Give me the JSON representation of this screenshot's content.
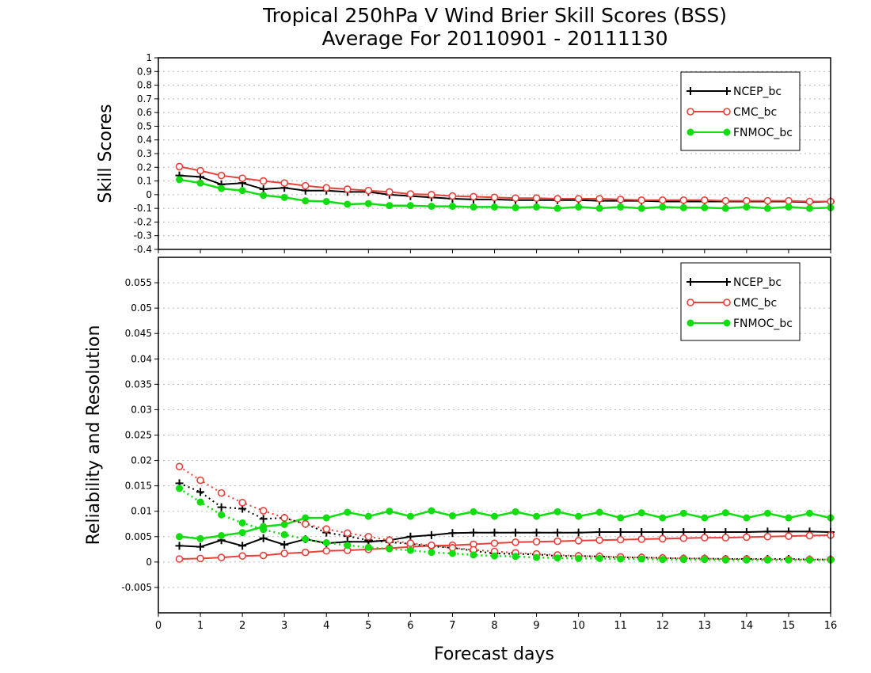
{
  "title_line1": "Tropical 250hPa V Wind Brier Skill Scores (BSS)",
  "title_line2": "Average For 20110901 - 20111130",
  "xlabel": "Forecast days",
  "colors": {
    "NCEP_bc": "#000000",
    "CMC_bc": "#e8403a",
    "FNMOC_bc": "#11dd11"
  },
  "chart_data": [
    {
      "type": "line",
      "ylabel": "Skill Scores",
      "ylim": [
        -0.4,
        1
      ],
      "yticks": [
        -0.4,
        -0.3,
        -0.2,
        -0.1,
        0,
        0.1,
        0.2,
        0.3,
        0.4,
        0.5,
        0.6,
        0.7,
        0.8,
        0.9,
        1
      ],
      "ytick_labels": [
        "-0.4",
        "-0.3",
        "-0.2",
        "-0.1",
        "0",
        "0.1",
        "0.2",
        "0.3",
        "0.4",
        "0.5",
        "0.6",
        "0.7",
        "0.8",
        "0.9",
        "1"
      ],
      "xlim": [
        0,
        16
      ],
      "xticks": [
        0,
        1,
        2,
        3,
        4,
        5,
        6,
        7,
        8,
        9,
        10,
        11,
        12,
        13,
        14,
        15,
        16
      ],
      "xtick_labels": [
        "0",
        "1",
        "2",
        "3",
        "4",
        "5",
        "6",
        "7",
        "8",
        "9",
        "10",
        "11",
        "12",
        "13",
        "14",
        "15",
        "16"
      ],
      "grid": true,
      "legend_position": "top-right",
      "x": [
        0.5,
        1,
        1.5,
        2,
        2.5,
        3,
        3.5,
        4,
        4.5,
        5,
        5.5,
        6,
        6.5,
        7,
        7.5,
        8,
        8.5,
        9,
        9.5,
        10,
        10.5,
        11,
        11.5,
        12,
        12.5,
        13,
        13.5,
        14,
        14.5,
        15,
        15.5,
        16
      ],
      "series": [
        {
          "name": "NCEP_bc",
          "marker": "plus",
          "style": "solid",
          "values": [
            0.14,
            0.13,
            0.075,
            0.085,
            0.04,
            0.05,
            0.03,
            0.03,
            0.02,
            0.02,
            0.0,
            -0.01,
            -0.02,
            -0.03,
            -0.035,
            -0.035,
            -0.04,
            -0.04,
            -0.04,
            -0.04,
            -0.045,
            -0.045,
            -0.045,
            -0.05,
            -0.05,
            -0.05,
            -0.05,
            -0.05,
            -0.05,
            -0.05,
            -0.055,
            -0.05
          ]
        },
        {
          "name": "CMC_bc",
          "marker": "open-circle",
          "style": "solid",
          "values": [
            0.205,
            0.175,
            0.14,
            0.12,
            0.1,
            0.085,
            0.065,
            0.05,
            0.04,
            0.03,
            0.02,
            0.005,
            0.0,
            -0.01,
            -0.015,
            -0.02,
            -0.025,
            -0.025,
            -0.03,
            -0.03,
            -0.03,
            -0.035,
            -0.04,
            -0.04,
            -0.04,
            -0.04,
            -0.045,
            -0.045,
            -0.045,
            -0.045,
            -0.05,
            -0.05
          ]
        },
        {
          "name": "FNMOC_bc",
          "marker": "filled-circle",
          "style": "solid",
          "values": [
            0.11,
            0.085,
            0.045,
            0.03,
            -0.005,
            -0.02,
            -0.045,
            -0.05,
            -0.07,
            -0.065,
            -0.08,
            -0.08,
            -0.085,
            -0.085,
            -0.09,
            -0.09,
            -0.095,
            -0.09,
            -0.1,
            -0.09,
            -0.1,
            -0.09,
            -0.1,
            -0.09,
            -0.095,
            -0.095,
            -0.1,
            -0.09,
            -0.1,
            -0.09,
            -0.1,
            -0.095
          ]
        }
      ]
    },
    {
      "type": "line",
      "ylabel": "Reliability and Resolution",
      "ylim": [
        -0.01,
        0.06
      ],
      "yticks": [
        -0.005,
        0,
        0.005,
        0.01,
        0.015,
        0.02,
        0.025,
        0.03,
        0.035,
        0.04,
        0.045,
        0.05,
        0.055
      ],
      "ytick_labels": [
        "-0.005",
        "0",
        "0.005",
        "0.01",
        "0.015",
        "0.02",
        "0.025",
        "0.03",
        "0.035",
        "0.04",
        "0.045",
        "0.05",
        "0.055"
      ],
      "xlim": [
        0,
        16
      ],
      "xticks": [
        0,
        1,
        2,
        3,
        4,
        5,
        6,
        7,
        8,
        9,
        10,
        11,
        12,
        13,
        14,
        15,
        16
      ],
      "xtick_labels": [
        "0",
        "1",
        "2",
        "3",
        "4",
        "5",
        "6",
        "7",
        "8",
        "9",
        "10",
        "11",
        "12",
        "13",
        "14",
        "15",
        "16"
      ],
      "grid": true,
      "legend_position": "top-right",
      "x": [
        0.5,
        1,
        1.5,
        2,
        2.5,
        3,
        3.5,
        4,
        4.5,
        5,
        5.5,
        6,
        6.5,
        7,
        7.5,
        8,
        8.5,
        9,
        9.5,
        10,
        10.5,
        11,
        11.5,
        12,
        12.5,
        13,
        13.5,
        14,
        14.5,
        15,
        15.5,
        16
      ],
      "series": [
        {
          "name": "NCEP_bc",
          "marker": "plus",
          "style": "solid",
          "legend": true,
          "values": [
            0.0032,
            0.003,
            0.0043,
            0.0032,
            0.0047,
            0.0034,
            0.0045,
            0.0037,
            0.004,
            0.004,
            0.0043,
            0.005,
            0.0053,
            0.0057,
            0.0058,
            0.0058,
            0.0058,
            0.0058,
            0.0058,
            0.0058,
            0.0059,
            0.0059,
            0.0059,
            0.0059,
            0.0059,
            0.0059,
            0.0059,
            0.0059,
            0.006,
            0.006,
            0.006,
            0.0059
          ]
        },
        {
          "name": "CMC_bc",
          "marker": "open-circle",
          "style": "solid",
          "legend": true,
          "values": [
            0.0006,
            0.0007,
            0.0009,
            0.0012,
            0.0013,
            0.0017,
            0.0019,
            0.0022,
            0.0023,
            0.0025,
            0.0027,
            0.003,
            0.0032,
            0.0033,
            0.0035,
            0.0037,
            0.0039,
            0.004,
            0.0041,
            0.0042,
            0.0043,
            0.0044,
            0.0045,
            0.0046,
            0.0047,
            0.0048,
            0.0048,
            0.0049,
            0.005,
            0.0051,
            0.0052,
            0.0053
          ]
        },
        {
          "name": "FNMOC_bc",
          "marker": "filled-circle",
          "style": "solid",
          "legend": true,
          "values": [
            0.005,
            0.0046,
            0.0052,
            0.0058,
            0.007,
            0.0074,
            0.0087,
            0.0087,
            0.0098,
            0.009,
            0.01,
            0.009,
            0.0101,
            0.0091,
            0.0099,
            0.009,
            0.0099,
            0.009,
            0.0099,
            0.009,
            0.0098,
            0.0087,
            0.0097,
            0.0087,
            0.0096,
            0.0087,
            0.0097,
            0.0087,
            0.0096,
            0.0087,
            0.0096,
            0.0087
          ]
        },
        {
          "name": "NCEP_bc",
          "marker": "plus",
          "style": "dotted",
          "legend": false,
          "values": [
            0.0155,
            0.0138,
            0.0108,
            0.0105,
            0.0085,
            0.0087,
            0.0075,
            0.0058,
            0.0051,
            0.0043,
            0.0039,
            0.0036,
            0.0031,
            0.0028,
            0.0022,
            0.0017,
            0.0016,
            0.0015,
            0.0012,
            0.0012,
            0.0011,
            0.0009,
            0.0009,
            0.0008,
            0.0007,
            0.0007,
            0.0006,
            0.0006,
            0.0006,
            0.0006,
            0.0005,
            0.0005
          ]
        },
        {
          "name": "CMC_bc",
          "marker": "open-circle",
          "style": "dotted",
          "legend": false,
          "values": [
            0.0188,
            0.0161,
            0.0136,
            0.0117,
            0.0101,
            0.0087,
            0.0075,
            0.0065,
            0.0057,
            0.005,
            0.0043,
            0.0037,
            0.0033,
            0.0028,
            0.0024,
            0.0021,
            0.0018,
            0.0016,
            0.0014,
            0.0012,
            0.0011,
            0.001,
            0.0009,
            0.0008,
            0.0007,
            0.0007,
            0.0006,
            0.0006,
            0.0005,
            0.0005,
            0.0005,
            0.0005
          ]
        },
        {
          "name": "FNMOC_bc",
          "marker": "filled-circle",
          "style": "dotted",
          "legend": false,
          "values": [
            0.0145,
            0.0118,
            0.0093,
            0.0077,
            0.0064,
            0.0054,
            0.0045,
            0.0038,
            0.0033,
            0.0029,
            0.0026,
            0.0023,
            0.0019,
            0.0017,
            0.0014,
            0.0012,
            0.0011,
            0.0009,
            0.0008,
            0.0007,
            0.0007,
            0.0006,
            0.0006,
            0.0005,
            0.0005,
            0.0005,
            0.0004,
            0.0004,
            0.0004,
            0.0004,
            0.0004,
            0.0004
          ]
        }
      ]
    }
  ]
}
